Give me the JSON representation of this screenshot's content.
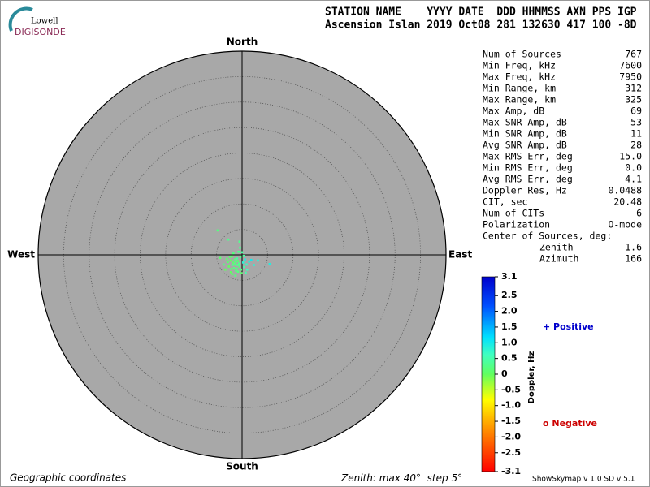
{
  "header": {
    "logo_top": "Lowell",
    "logo_bottom": "DIGISONDE",
    "line1": "STATION NAME    YYYY DATE  DDD HHMMSS AXN PPS IGP",
    "line2": "Ascension Islan 2019 Oct08 281 132630 417 100 -8D"
  },
  "stats": {
    "rows": [
      [
        "Num of Sources",
        "767"
      ],
      [
        "Min Freq, kHz",
        "7600"
      ],
      [
        "Max Freq, kHz",
        "7950"
      ],
      [
        "Min Range, km",
        "312"
      ],
      [
        "Max Range, km",
        "325"
      ],
      [
        "Max Amp, dB",
        "69"
      ],
      [
        "Max SNR Amp, dB",
        "53"
      ],
      [
        "Min SNR Amp, dB",
        "11"
      ],
      [
        "Avg SNR Amp, dB",
        "28"
      ],
      [
        "Max RMS Err, deg",
        "15.0"
      ],
      [
        "Min RMS Err, deg",
        "0.0"
      ],
      [
        "Avg RMS Err, deg",
        "4.1"
      ],
      [
        "Doppler Res, Hz",
        "0.0488"
      ],
      [
        "CIT, sec",
        "20.48"
      ],
      [
        "Num of CITs",
        "6"
      ],
      [
        "Polarization",
        "O-mode"
      ]
    ],
    "center_title": "Center of Sources, deg:",
    "center_rows": [
      [
        "Zenith",
        "1.6"
      ],
      [
        "Azimuth",
        "166"
      ]
    ]
  },
  "chart_data": {
    "type": "skymap",
    "directions": {
      "north": "North",
      "south": "South",
      "west": "West",
      "east": "East"
    },
    "zenith": {
      "label": "Zenith:",
      "max_label": "max",
      "max": 40,
      "step_label": "step",
      "step": 5,
      "unit": "°"
    },
    "x": [
      -1.3,
      -0.8,
      -1.9,
      -0.5,
      -2.3,
      -1.0,
      -1.6,
      0.2,
      -2.8,
      -1.2,
      0.6,
      -0.3,
      -2.0,
      -1.5,
      -0.9,
      -1.8,
      -0.2,
      0.9,
      -2.6,
      -1.1,
      -0.6,
      -1.4,
      -2.1,
      0.4,
      1.4,
      -3.0,
      -0.7,
      -1.7,
      -0.1,
      -1.3,
      -2.2,
      0.0,
      1.8,
      3.1,
      5.4,
      -4.8,
      -2.7,
      -4.3,
      -3.6,
      -2.4,
      1.0,
      -0.4,
      0.3,
      2.3,
      -1.0,
      -1.9,
      -0.8,
      -3.3,
      0.7,
      -0.5
    ],
    "y": [
      -1.6,
      -1.2,
      -2.0,
      -2.3,
      -1.1,
      -0.7,
      -2.6,
      -1.5,
      -1.4,
      -3.1,
      -0.9,
      -0.4,
      -0.3,
      -1.9,
      -2.0,
      -1.5,
      -2.9,
      -1.9,
      -2.3,
      -1.3,
      -1.7,
      -0.9,
      -2.8,
      -2.4,
      -1.3,
      -0.8,
      0.6,
      0.3,
      -3.6,
      -4.1,
      -3.4,
      0.5,
      -1.0,
      -1.1,
      -1.8,
      4.8,
      3.0,
      -0.6,
      -1.9,
      -0.4,
      -2.9,
      1.4,
      -0.2,
      -2.0,
      -2.7,
      -3.8,
      -3.3,
      -2.9,
      -3.5,
      2.6
    ],
    "doppler": [
      0.2,
      0.1,
      0.3,
      0.2,
      0.0,
      0.4,
      0.2,
      0.8,
      0.1,
      0.2,
      0.9,
      0.3,
      0.1,
      0.2,
      0.3,
      0.1,
      0.2,
      0.7,
      0.0,
      0.2,
      0.3,
      0.2,
      0.1,
      0.5,
      0.9,
      0.1,
      0.3,
      0.2,
      0.1,
      0.2,
      0.0,
      0.4,
      1.0,
      0.8,
      0.9,
      0.2,
      0.3,
      0.1,
      0.2,
      0.1,
      0.6,
      0.3,
      0.4,
      0.8,
      0.2,
      0.1,
      0.2,
      0.0,
      0.5,
      0.3
    ],
    "colorbar": {
      "label": "Doppler, Hz",
      "ylim": [
        -3.1,
        3.1
      ],
      "yticks": [
        3.1,
        2.5,
        {
          "value": 2,
          "label": "2.0"
        },
        1.5,
        {
          "value": 1,
          "label": "1.0"
        },
        0.5,
        0,
        -0.5,
        {
          "value": -1,
          "label": "-1.0"
        },
        -1.5,
        {
          "value": -2,
          "label": "-2.0"
        },
        -2.5,
        -3.1
      ]
    },
    "legend": {
      "positive": "+ Positive",
      "negative": "o Negative"
    }
  },
  "footer": {
    "coords": "Geographic coordinates",
    "version": "ShowSkymap v 1.0  SD v 5.1"
  }
}
